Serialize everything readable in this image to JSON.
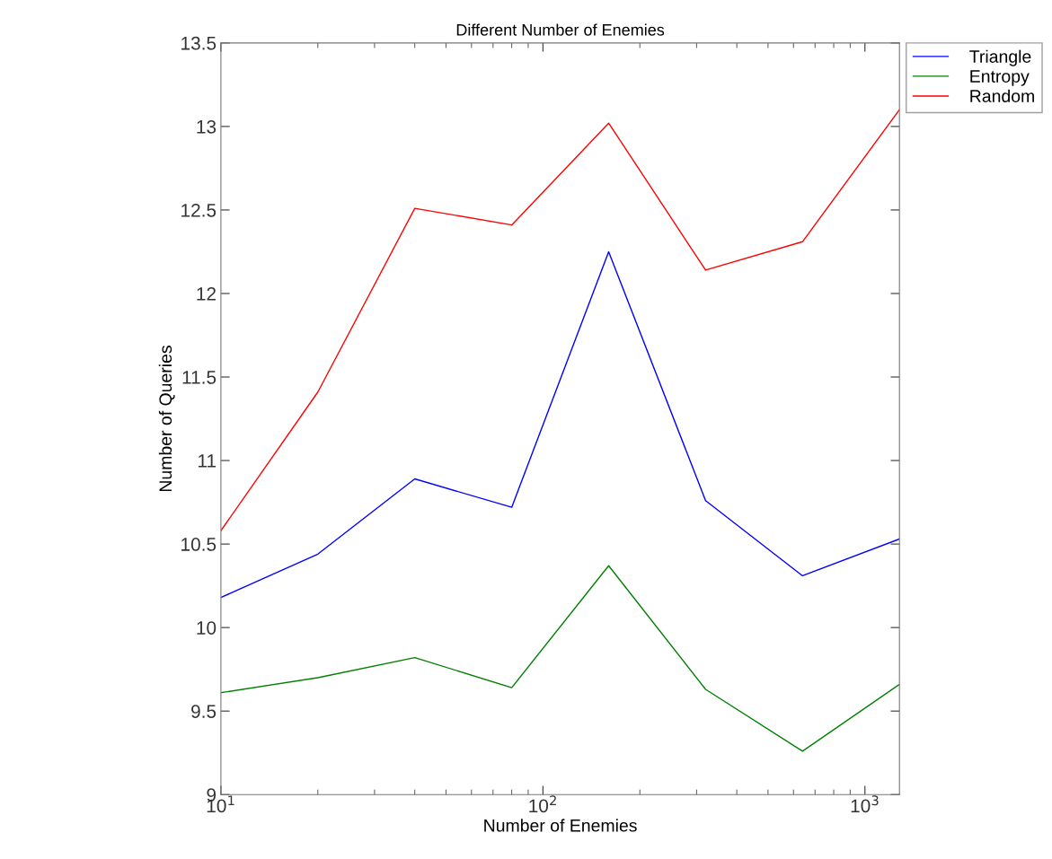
{
  "chart_data": {
    "type": "line",
    "title": "Different Number of Enemies",
    "xlabel": "Number of Enemies",
    "ylabel": "Number of Queries",
    "x": [
      10,
      20,
      40,
      80,
      160,
      320,
      640,
      1280
    ],
    "series": [
      {
        "name": "Triangle",
        "color": "#0000ff",
        "values": [
          10.18,
          10.44,
          10.89,
          10.72,
          12.25,
          10.76,
          10.31,
          10.53
        ]
      },
      {
        "name": "Entropy",
        "color": "#008000",
        "values": [
          9.61,
          9.7,
          9.82,
          9.64,
          10.37,
          9.63,
          9.26,
          9.66
        ]
      },
      {
        "name": "Random",
        "color": "#ff0000",
        "values": [
          10.58,
          11.41,
          12.51,
          12.41,
          13.02,
          12.14,
          12.31,
          13.1
        ]
      }
    ],
    "log": "x",
    "xlim": [
      10,
      1280
    ],
    "xticks": [
      {
        "value": 10,
        "label": "10$^{1}$"
      },
      {
        "value": 100,
        "label": "10$^{2}$"
      },
      {
        "value": 1000,
        "label": "10$^{3}$"
      }
    ],
    "ylim": [
      9,
      13.5
    ],
    "yticks": [
      9,
      9.5,
      10,
      10.5,
      11,
      11.5,
      12,
      12.5,
      13,
      13.5
    ],
    "legend": "top right",
    "grid": false
  }
}
